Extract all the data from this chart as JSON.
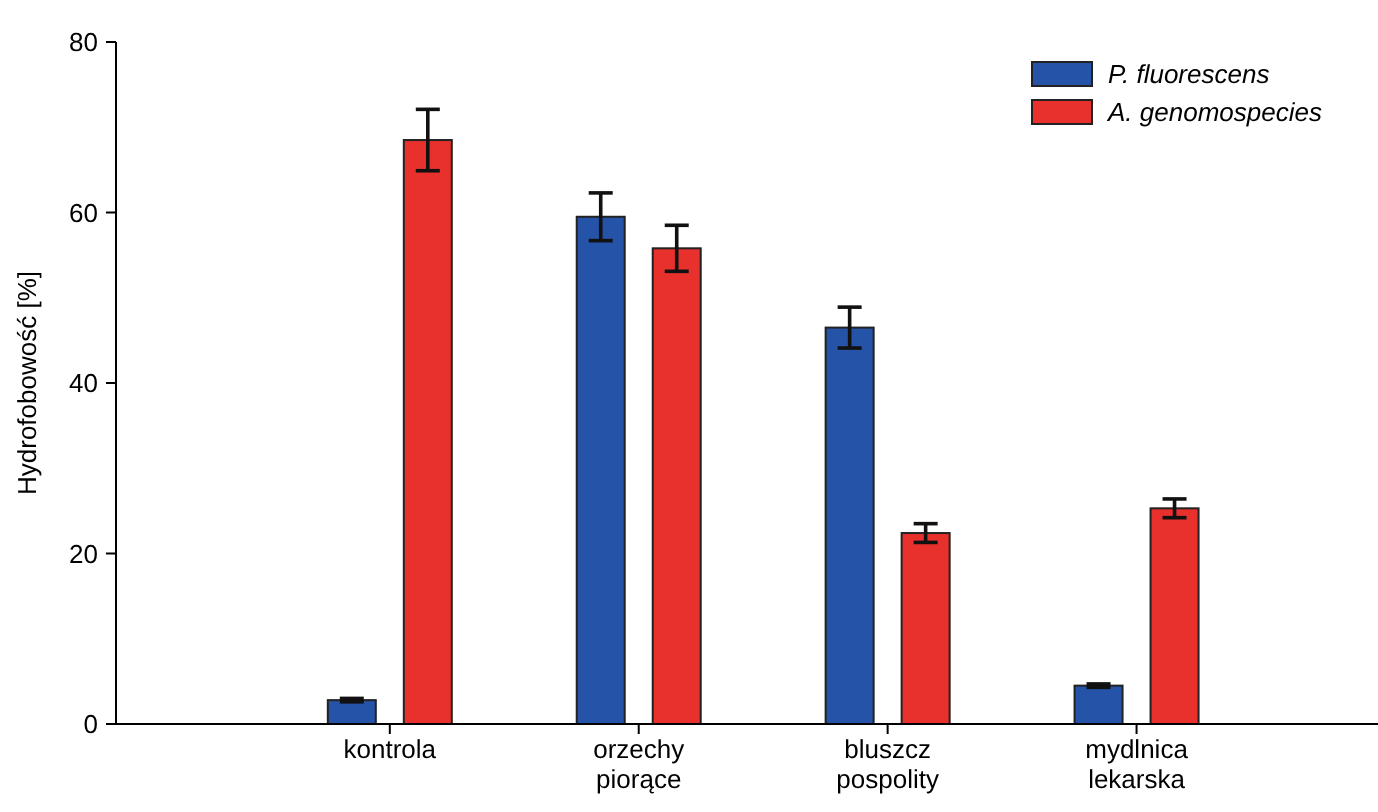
{
  "chart_data": {
    "type": "bar",
    "ylabel": "Hydrofobowość [%]",
    "categories": [
      "kontrola",
      "orzechy piorące",
      "bluszcz pospolity",
      "mydlnica lekarska"
    ],
    "series": [
      {
        "name": "P. fluorescens",
        "color": "#2453a8",
        "values": [
          2.8,
          59.5,
          46.5,
          4.5
        ],
        "errors": [
          0.2,
          2.8,
          2.4,
          0.2
        ]
      },
      {
        "name": "A. genomospecies",
        "color": "#e8302c",
        "values": [
          68.5,
          55.8,
          22.4,
          25.3
        ],
        "errors": [
          3.6,
          2.7,
          1.1,
          1.1
        ]
      }
    ],
    "ylim": [
      0,
      80
    ],
    "yticks": [
      0,
      20,
      40,
      60,
      80
    ],
    "legend": "top right",
    "grid": false
  }
}
